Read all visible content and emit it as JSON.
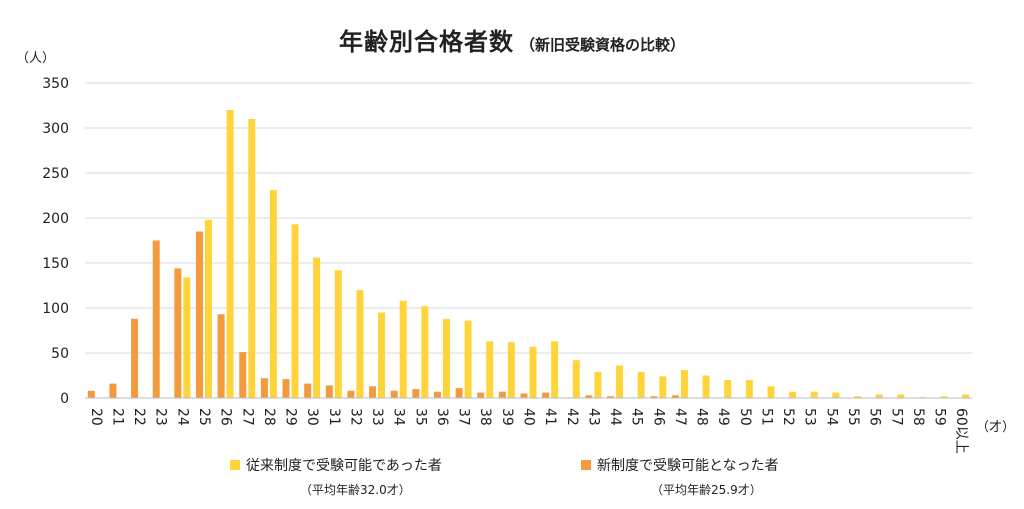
{
  "chart_data": {
    "type": "bar",
    "title": "年齢別合格者数",
    "subtitle": "（新旧受験資格の比較）",
    "ylabel": "（人）",
    "xlabel": "（才）",
    "ylim": [
      0,
      350
    ],
    "yticks": [
      0,
      50,
      100,
      150,
      200,
      250,
      300,
      350
    ],
    "grid": true,
    "legend_position": "bottom",
    "categories": [
      "20",
      "21",
      "22",
      "23",
      "24",
      "25",
      "26",
      "27",
      "28",
      "29",
      "30",
      "31",
      "32",
      "33",
      "34",
      "35",
      "36",
      "37",
      "38",
      "39",
      "40",
      "41",
      "42",
      "43",
      "44",
      "45",
      "46",
      "47",
      "48",
      "49",
      "50",
      "51",
      "52",
      "53",
      "54",
      "55",
      "56",
      "57",
      "58",
      "59",
      "60以上"
    ],
    "series": [
      {
        "name": "従来制度で受験可能であった者",
        "note": "（平均年齢32.0才）",
        "color": "#FFD43B",
        "values": [
          0,
          0,
          0,
          0,
          134,
          198,
          320,
          310,
          231,
          193,
          156,
          142,
          120,
          95,
          108,
          102,
          88,
          86,
          63,
          62,
          57,
          63,
          42,
          29,
          36,
          29,
          24,
          31,
          25,
          20,
          20,
          13,
          7,
          7,
          6,
          2,
          4,
          4,
          1,
          2,
          4
        ]
      },
      {
        "name": "新制度で受験可能となった者",
        "note": "（平均年齢25.9才）",
        "color": "#F39A3C",
        "values": [
          8,
          16,
          88,
          175,
          144,
          185,
          93,
          51,
          22,
          21,
          16,
          14,
          8,
          13,
          8,
          10,
          7,
          11,
          6,
          7,
          5,
          6,
          0,
          3,
          2,
          0,
          2,
          3,
          0,
          0,
          0,
          0,
          0,
          0,
          0,
          0,
          0,
          0,
          0,
          0,
          0
        ]
      }
    ]
  }
}
